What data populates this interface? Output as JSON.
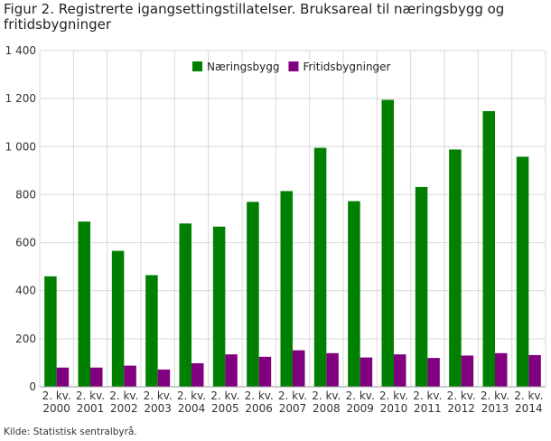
{
  "chart_data": {
    "type": "bar",
    "title": "Figur 2. Registrerte igangsettingstillatelser. Bruksareal til næringsbygg og fritidsbygninger",
    "categories": [
      [
        "2. kv.",
        "2000"
      ],
      [
        "2. kv.",
        "2001"
      ],
      [
        "2. kv.",
        "2002"
      ],
      [
        "2. kv.",
        "2003"
      ],
      [
        "2. kv.",
        "2004"
      ],
      [
        "2. kv.",
        "2005"
      ],
      [
        "2. kv.",
        "2006"
      ],
      [
        "2. kv.",
        "2007"
      ],
      [
        "2. kv.",
        "2008"
      ],
      [
        "2. kv.",
        "2009"
      ],
      [
        "2. kv.",
        "2010"
      ],
      [
        "2. kv.",
        "2011"
      ],
      [
        "2. kv.",
        "2012"
      ],
      [
        "2. kv.",
        "2013"
      ],
      [
        "2. kv.",
        "2014"
      ]
    ],
    "series": [
      {
        "name": "Næringsbygg",
        "color": "#008000",
        "values": [
          460,
          688,
          566,
          465,
          680,
          667,
          770,
          815,
          995,
          773,
          1195,
          832,
          988,
          1148,
          958
        ]
      },
      {
        "name": "Fritidsbygninger",
        "color": "#800080",
        "values": [
          80,
          80,
          88,
          72,
          98,
          135,
          125,
          152,
          140,
          122,
          135,
          120,
          130,
          140,
          132
        ]
      }
    ],
    "y_ticks": [
      "0",
      "200",
      "400",
      "600",
      "800",
      "1 000",
      "1 200",
      "1 400"
    ],
    "ylim": [
      0,
      1400
    ],
    "grid": true,
    "legend_position": "top-center",
    "xlabel": "",
    "ylabel": ""
  },
  "source": "Kilde: Statistisk sentralbyrå."
}
